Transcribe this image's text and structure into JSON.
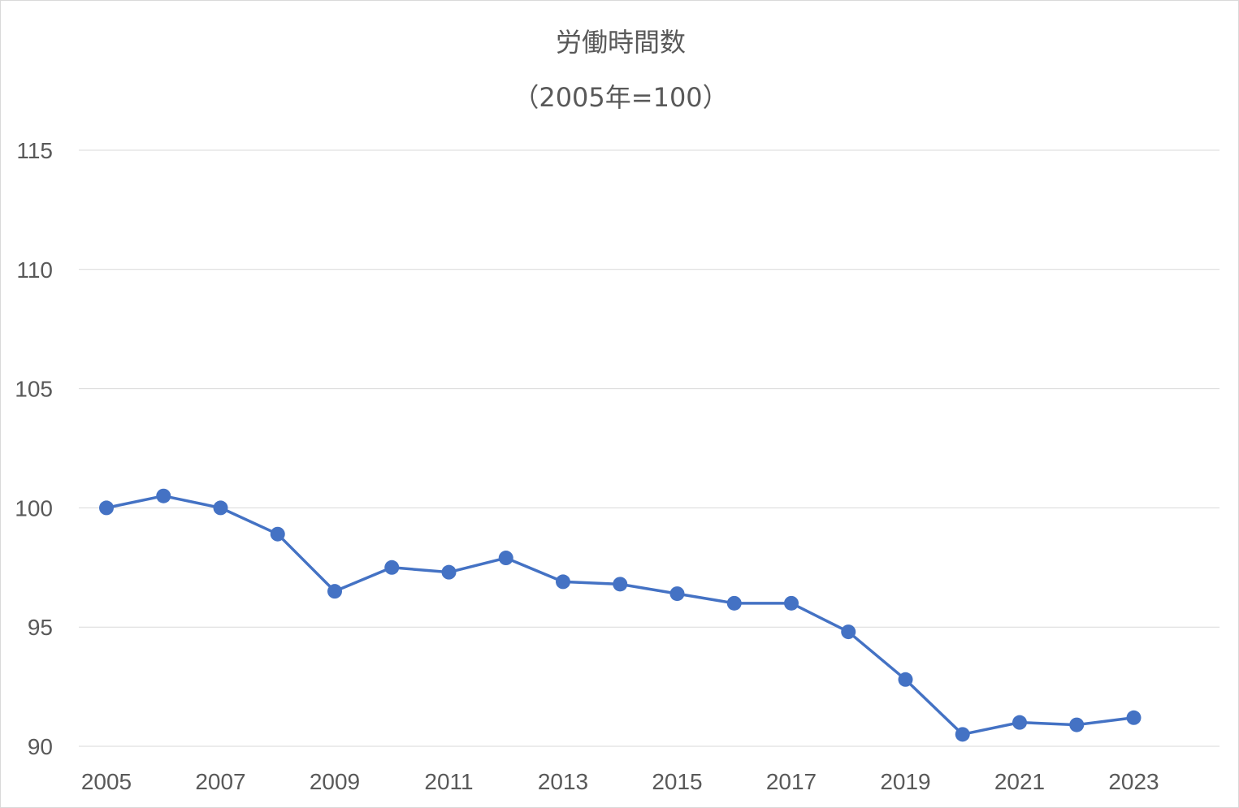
{
  "chart_data": {
    "type": "line",
    "title": "労働時間数",
    "subtitle": "（2005年=100）",
    "xlabel": "",
    "ylabel": "",
    "ylim": [
      90,
      115
    ],
    "y_ticks": [
      90,
      95,
      100,
      105,
      110,
      115
    ],
    "x": [
      2005,
      2006,
      2007,
      2008,
      2009,
      2010,
      2011,
      2012,
      2013,
      2014,
      2015,
      2016,
      2017,
      2018,
      2019,
      2020,
      2021,
      2022,
      2023
    ],
    "x_tick_labels": [
      "2005",
      "2007",
      "2009",
      "2011",
      "2013",
      "2015",
      "2017",
      "2019",
      "2021",
      "2023"
    ],
    "grid": "horizontal",
    "legend": "none",
    "series": [
      {
        "color": "#4472c4",
        "values": [
          100.0,
          100.5,
          100.0,
          98.9,
          96.5,
          97.5,
          97.3,
          97.9,
          96.9,
          96.8,
          96.4,
          96.0,
          96.0,
          94.8,
          92.8,
          90.5,
          91.0,
          90.9,
          91.2
        ]
      }
    ]
  }
}
